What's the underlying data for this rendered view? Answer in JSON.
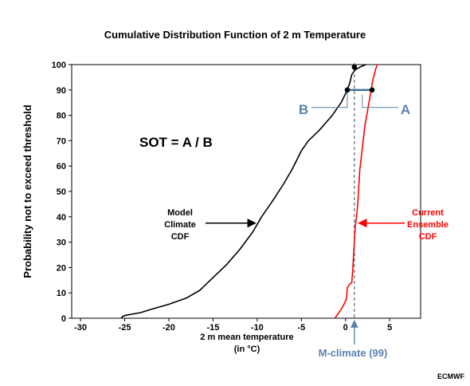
{
  "chart_data": {
    "type": "line",
    "title": "Cumulative Distribution Function of 2 m Temperature",
    "xlabel": "2 m mean temperature",
    "xlabel_unit": "(in °C)",
    "ylabel": "Probability not to exceed threshold",
    "xlim": [
      -31,
      8.5
    ],
    "ylim": [
      0,
      100
    ],
    "x_ticks": [
      -30,
      -25,
      -20,
      -15,
      -10,
      -5,
      0,
      5
    ],
    "y_ticks": [
      0,
      10,
      20,
      30,
      40,
      50,
      60,
      70,
      80,
      90,
      100
    ],
    "grid": false,
    "series": [
      {
        "name": "Model Climate CDF",
        "color": "#000000",
        "points": [
          [
            -25.4,
            0
          ],
          [
            -25.2,
            0.8
          ],
          [
            -24.8,
            1.2
          ],
          [
            -23.2,
            2.2
          ],
          [
            -22,
            3.5
          ],
          [
            -20,
            5.5
          ],
          [
            -18,
            8
          ],
          [
            -16.5,
            11
          ],
          [
            -15,
            16
          ],
          [
            -13.5,
            21
          ],
          [
            -12,
            27
          ],
          [
            -10.5,
            34
          ],
          [
            -9.5,
            40
          ],
          [
            -8.3,
            46
          ],
          [
            -7,
            53
          ],
          [
            -6,
            59
          ],
          [
            -5,
            66
          ],
          [
            -4.2,
            70
          ],
          [
            -3,
            74
          ],
          [
            -1.5,
            80
          ],
          [
            -0.5,
            85
          ],
          [
            0.2,
            90
          ],
          [
            0.5,
            93
          ],
          [
            0.7,
            96
          ],
          [
            1.1,
            98
          ],
          [
            1.8,
            99.3
          ],
          [
            2.3,
            100
          ]
        ]
      },
      {
        "name": "Current Ensemble CDF",
        "color": "#ff0000",
        "points": [
          [
            -1.2,
            0
          ],
          [
            -0.8,
            2
          ],
          [
            -0.4,
            4
          ],
          [
            -0.1,
            6
          ],
          [
            0.1,
            7.5
          ],
          [
            0.2,
            12
          ],
          [
            0.5,
            13.5
          ],
          [
            0.7,
            14
          ],
          [
            0.8,
            18
          ],
          [
            0.9,
            24
          ],
          [
            1,
            30
          ],
          [
            1.1,
            36
          ],
          [
            1.25,
            40
          ],
          [
            1.3,
            42
          ],
          [
            1.4,
            46
          ],
          [
            1.5,
            52
          ],
          [
            1.6,
            58
          ],
          [
            1.8,
            64
          ],
          [
            2,
            70
          ],
          [
            2.2,
            76
          ],
          [
            2.4,
            80
          ],
          [
            2.6,
            84
          ],
          [
            2.8,
            88
          ],
          [
            3.1,
            94
          ],
          [
            3.4,
            98
          ],
          [
            3.6,
            100
          ]
        ]
      }
    ],
    "markers": [
      {
        "x": 1,
        "y": 99,
        "color": "#000000"
      },
      {
        "x": 0.2,
        "y": 90,
        "color": "#000000"
      },
      {
        "x": 3.0,
        "y": 90,
        "color": "#000000"
      }
    ],
    "mclimate_x": 1,
    "ab_level": 90,
    "annotations": {
      "sot": "SOT = A / B",
      "label_a": "A",
      "label_b": "B",
      "model_climate": [
        "Model",
        "Climate",
        "CDF"
      ],
      "current_ensemble": [
        "Current",
        "Ensemble",
        "CDF"
      ],
      "mclimate": "M-climate (99)",
      "credit": "ECMWF"
    },
    "colors": {
      "axis": "#000000",
      "model": "#000000",
      "ensemble": "#ff0000",
      "accent": "#5b82b0",
      "ab_bar": "#3f6e96"
    }
  }
}
